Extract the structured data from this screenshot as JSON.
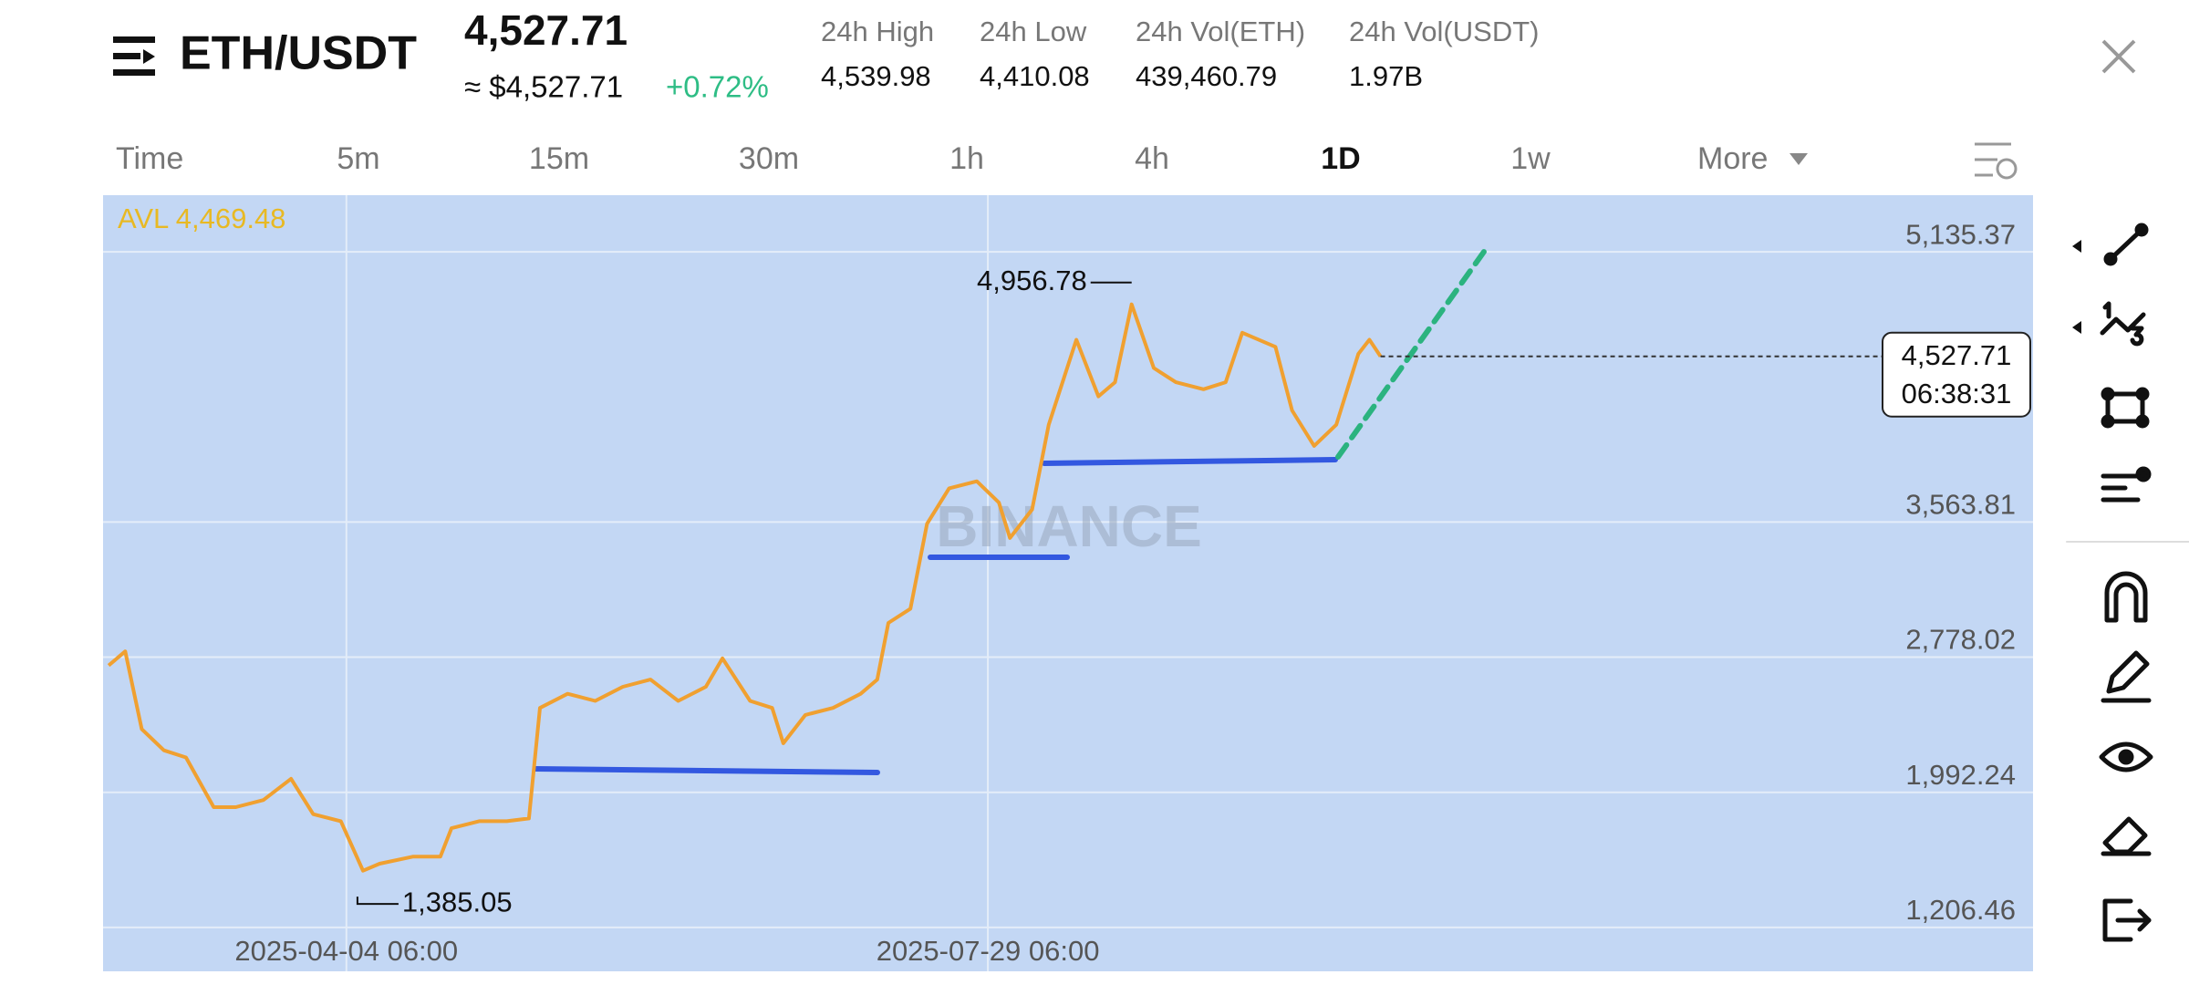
{
  "header": {
    "pair": "ETH/USDT",
    "price": "4,527.71",
    "usd_price": "≈ $4,527.71",
    "change": "+0.72%",
    "stats": [
      {
        "label": "24h High",
        "value": "4,539.98"
      },
      {
        "label": "24h Low",
        "value": "4,410.08"
      },
      {
        "label": "24h Vol(ETH)",
        "value": "439,460.79"
      },
      {
        "label": "24h Vol(USDT)",
        "value": "1.97B"
      }
    ]
  },
  "intervals": [
    "Time",
    "5m",
    "15m",
    "30m",
    "1h",
    "4h",
    "1D",
    "1w",
    "More"
  ],
  "active_interval": "1D",
  "chart_data": {
    "type": "line",
    "avl_label": "AVL 4,469.48",
    "watermark": "BINANCE",
    "color": "#f0a030",
    "x": [
      "2025-02-20",
      "2025-02-23",
      "2025-02-26",
      "2025-03-02",
      "2025-03-06",
      "2025-03-11",
      "2025-03-15",
      "2025-03-20",
      "2025-03-25",
      "2025-03-29",
      "2025-04-03",
      "2025-04-07",
      "2025-04-10",
      "2025-04-16",
      "2025-04-21",
      "2025-04-23",
      "2025-04-28",
      "2025-05-03",
      "2025-05-07",
      "2025-05-09",
      "2025-05-14",
      "2025-05-19",
      "2025-05-24",
      "2025-05-29",
      "2025-06-03",
      "2025-06-08",
      "2025-06-11",
      "2025-06-16",
      "2025-06-20",
      "2025-06-22",
      "2025-06-26",
      "2025-07-01",
      "2025-07-06",
      "2025-07-09",
      "2025-07-11",
      "2025-07-15",
      "2025-07-18",
      "2025-07-22",
      "2025-07-27",
      "2025-07-31",
      "2025-08-02",
      "2025-08-06",
      "2025-08-09",
      "2025-08-14",
      "2025-08-18",
      "2025-08-21",
      "2025-08-24",
      "2025-08-28",
      "2025-09-01",
      "2025-09-06",
      "2025-09-10",
      "2025-09-13",
      "2025-09-19",
      "2025-09-22",
      "2025-09-26",
      "2025-09-30",
      "2025-10-04",
      "2025-10-06",
      "2025-10-08"
    ],
    "values": [
      2730,
      2812,
      2360,
      2236,
      2195,
      1906,
      1906,
      1947,
      2071,
      1865,
      1824,
      1536,
      1577,
      1618,
      1618,
      1783,
      1824,
      1824,
      1840,
      2483,
      2565,
      2524,
      2606,
      2648,
      2524,
      2606,
      2771,
      2524,
      2483,
      2277,
      2442,
      2483,
      2565,
      2648,
      2977,
      3060,
      3554,
      3760,
      3801,
      3677,
      3471,
      3637,
      4130,
      4624,
      4295,
      4377,
      4830,
      4460,
      4377,
      4336,
      4377,
      4665,
      4583,
      4213,
      4007,
      4130,
      4542,
      4624,
      4527.71
    ],
    "xlim": [
      "2025-02-19",
      "2026-02-03"
    ],
    "xticks": [
      {
        "value": "2025-04-04",
        "label": "2025-04-04 06:00"
      },
      {
        "value": "2025-07-29",
        "label": "2025-07-29 06:00"
      }
    ],
    "ylim": [
      951,
      5465
    ],
    "yticks": [
      {
        "value": 1206.46,
        "label": "1,206.46"
      },
      {
        "value": 1992.24,
        "label": "1,992.24"
      },
      {
        "value": 2778.02,
        "label": "2,778.02"
      },
      {
        "value": 3563.81,
        "label": "3,563.81"
      },
      {
        "value": 5135.37,
        "label": "5,135.37"
      }
    ],
    "grid": true,
    "annotations": [
      {
        "x": "2025-08-24",
        "value": 4956.78,
        "label": "4,956.78",
        "side": "left"
      },
      {
        "x": "2025-04-06",
        "value": 1385.05,
        "label": "1,385.05",
        "side": "right"
      }
    ],
    "current": {
      "value": 4527.71,
      "label": "4,527.71",
      "countdown": "06:38:31"
    }
  }
}
